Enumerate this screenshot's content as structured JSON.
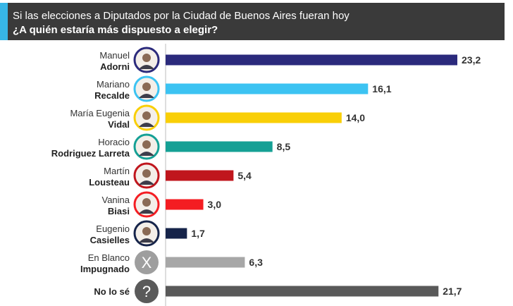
{
  "header": {
    "line1": "Si las elecciones a Diputados por la Ciudad de Buenos Aires fueran hoy",
    "line2": "¿A quién estaría más dispuesto a elegir?",
    "accent_color": "#37b6e6",
    "background_color": "#3a3a3a"
  },
  "chart_data": {
    "type": "bar",
    "orientation": "horizontal",
    "title": "¿A quién estaría más dispuesto a elegir?",
    "categories": [
      "Manuel Adorni",
      "Mariano Recalde",
      "María Eugenia Vidal",
      "Horacio Rodriguez Larreta",
      "Martín Lousteau",
      "Vanina Biasi",
      "Eugenio Casielles",
      "En Blanco Impugnado",
      "No lo sé"
    ],
    "labels": [
      {
        "line1": "Manuel",
        "line2": "Adorni"
      },
      {
        "line1": "Mariano",
        "line2": "Recalde"
      },
      {
        "line1": "María Eugenia",
        "line2": "Vidal"
      },
      {
        "line1": "Horacio",
        "line2": "Rodriguez Larreta"
      },
      {
        "line1": "Martín",
        "line2": "Lousteau"
      },
      {
        "line1": "Vanina",
        "line2": "Biasi"
      },
      {
        "line1": "Eugenio",
        "line2": "Casielles"
      },
      {
        "line1": "En Blanco",
        "line2": "Impugnado"
      },
      {
        "line1": "",
        "line2": "No lo sé"
      }
    ],
    "values": [
      23.2,
      16.1,
      14.0,
      8.5,
      5.4,
      3.0,
      1.7,
      6.3,
      21.7
    ],
    "value_labels": [
      "23,2",
      "16,1",
      "14,0",
      "8,5",
      "5,4",
      "3,0",
      "1,7",
      "6,3",
      "21,7"
    ],
    "colors": [
      "#2b2a7c",
      "#3cc3f2",
      "#f9cf07",
      "#15a095",
      "#c0161d",
      "#f41d22",
      "#16244a",
      "#a7a7a7",
      "#595959"
    ],
    "icons": [
      "avatar",
      "avatar",
      "avatar",
      "avatar",
      "avatar",
      "avatar",
      "avatar",
      "x-icon",
      "question-icon"
    ],
    "icon_glyphs": [
      "",
      "",
      "",
      "",
      "",
      "",
      "",
      "X",
      "?"
    ],
    "xlim": [
      0,
      23.2
    ],
    "grid": false
  }
}
